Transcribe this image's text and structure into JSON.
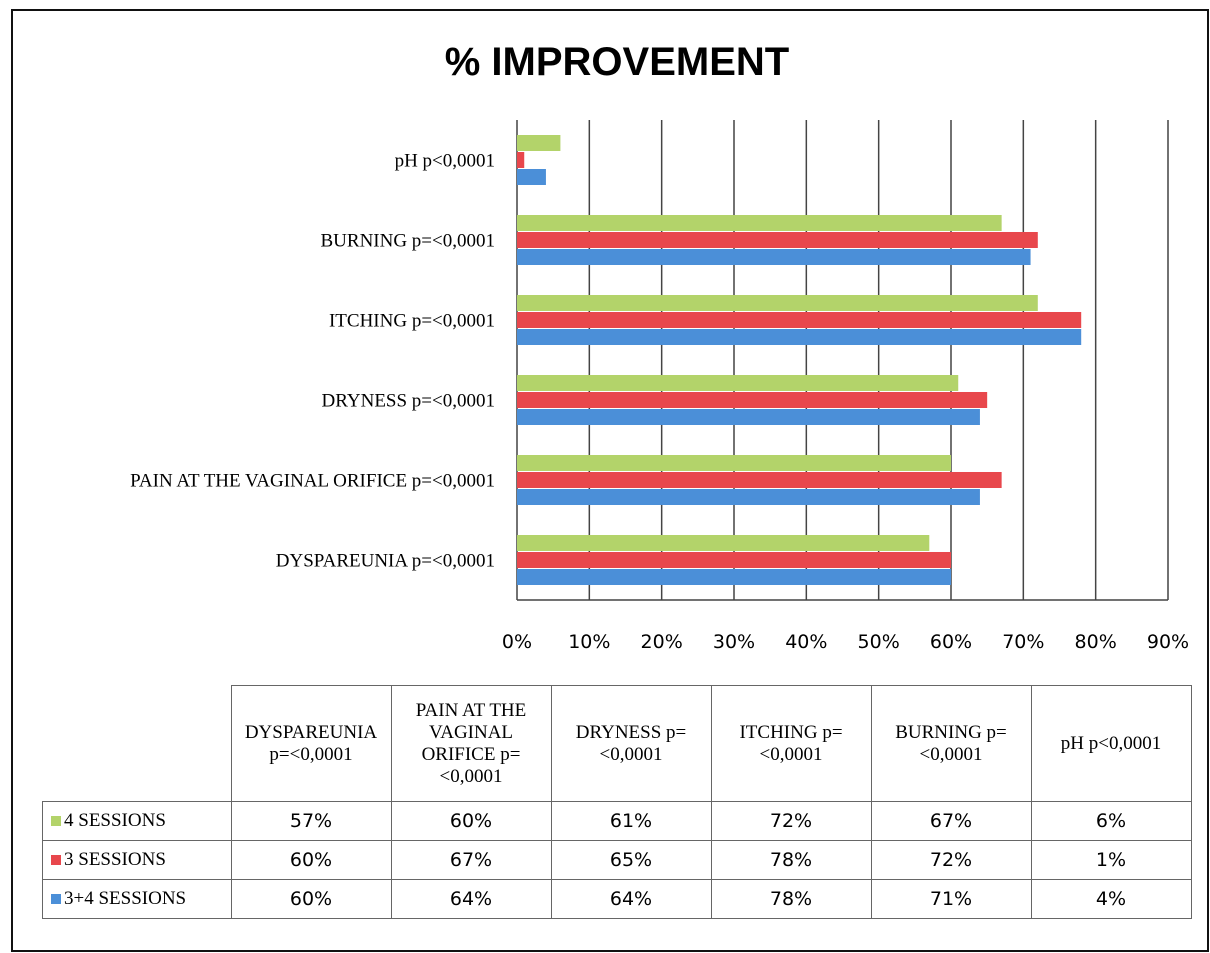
{
  "chart_data": {
    "type": "barh",
    "title": "% IMPROVEMENT",
    "categories": [
      "DYSPAREUNIA p=<0,0001",
      "PAIN AT THE VAGINAL ORIFICE p=<0,0001",
      "DRYNESS p=<0,0001",
      "ITCHING p=<0,0001",
      "BURNING p=<0,0001",
      "pH p<0,0001"
    ],
    "series": [
      {
        "name": "4 SESSIONS",
        "color": "#b3d36a",
        "values": [
          57,
          60,
          61,
          72,
          67,
          6
        ],
        "value_labels": [
          "57%",
          "60%",
          "61%",
          "72%",
          "67%",
          "6%"
        ]
      },
      {
        "name": "3 SESSIONS",
        "color": "#e8474c",
        "values": [
          60,
          67,
          65,
          78,
          72,
          1
        ],
        "value_labels": [
          "60%",
          "67%",
          "65%",
          "78%",
          "72%",
          "1%"
        ]
      },
      {
        "name": "3+4 SESSIONS",
        "color": "#4b8fd8",
        "values": [
          60,
          64,
          64,
          78,
          71,
          4
        ],
        "value_labels": [
          "60%",
          "64%",
          "64%",
          "78%",
          "71%",
          "4%"
        ]
      }
    ],
    "xlim": [
      0,
      90
    ],
    "xticks": [
      {
        "value": 0,
        "label": "0%"
      },
      {
        "value": 10,
        "label": "10%"
      },
      {
        "value": 20,
        "label": "20%"
      },
      {
        "value": 30,
        "label": "30%"
      },
      {
        "value": 40,
        "label": "40%"
      },
      {
        "value": 50,
        "label": "50%"
      },
      {
        "value": 60,
        "label": "60%"
      },
      {
        "value": 70,
        "label": "70%"
      },
      {
        "value": 80,
        "label": "80%"
      },
      {
        "value": 90,
        "label": "90%"
      }
    ],
    "grid": true
  }
}
